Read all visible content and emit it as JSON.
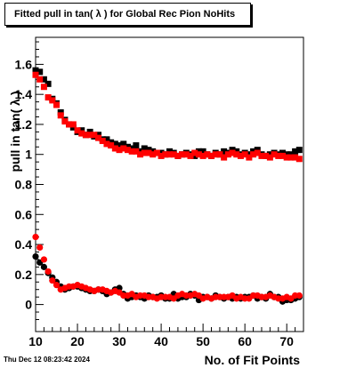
{
  "chart_data": {
    "type": "scatter",
    "title": "Fitted pull in tan( λ ) for Global Rec Pion NoHits",
    "xlabel": "No. of Fit Points",
    "ylabel": "pull in tan( λ )",
    "xlim": [
      10,
      74
    ],
    "ylim": [
      -0.18,
      1.78
    ],
    "x_ticks": [
      10,
      20,
      30,
      40,
      50,
      60,
      70
    ],
    "y_ticks": [
      0,
      0.2,
      0.4,
      0.6,
      0.8,
      1,
      1.2,
      1.4,
      1.6
    ],
    "series": [
      {
        "color": "#000000",
        "marker": "square",
        "x": [
          10,
          11,
          12,
          13,
          14,
          15,
          16,
          17,
          18,
          19,
          20,
          21,
          22,
          23,
          24,
          25,
          26,
          27,
          28,
          29,
          30,
          31,
          32,
          33,
          34,
          35,
          36,
          37,
          38,
          39,
          40,
          41,
          42,
          43,
          44,
          45,
          46,
          47,
          48,
          49,
          50,
          51,
          52,
          53,
          54,
          55,
          56,
          57,
          58,
          59,
          60,
          61,
          62,
          63,
          64,
          65,
          66,
          67,
          68,
          69,
          70,
          71,
          72,
          73
        ],
        "values": [
          1.56,
          1.55,
          1.5,
          1.47,
          1.37,
          1.34,
          1.28,
          1.23,
          1.2,
          1.18,
          1.15,
          1.16,
          1.13,
          1.15,
          1.12,
          1.13,
          1.1,
          1.1,
          1.08,
          1.07,
          1.06,
          1.07,
          1.05,
          1.04,
          1.06,
          1.02,
          1.04,
          1.03,
          1.02,
          1.01,
          1.01,
          1.0,
          1.02,
          1.01,
          0.99,
          1.0,
          1.01,
          1.0,
          0.99,
          1.02,
          1.02,
          1.0,
          0.99,
          1.01,
          1.0,
          1.02,
          1.01,
          1.03,
          1.02,
          1.0,
          1.01,
          1.0,
          1.02,
          1.03,
          1.0,
          0.99,
          1.0,
          1.01,
          1.0,
          1.01,
          1.0,
          1.0,
          1.02,
          1.03
        ]
      },
      {
        "color": "#000000",
        "marker": "circle",
        "x": [
          10,
          11,
          12,
          13,
          14,
          15,
          16,
          17,
          18,
          19,
          20,
          21,
          22,
          23,
          24,
          25,
          26,
          27,
          28,
          29,
          30,
          31,
          32,
          33,
          34,
          35,
          36,
          37,
          38,
          39,
          40,
          41,
          42,
          43,
          44,
          45,
          46,
          47,
          48,
          49,
          50,
          51,
          52,
          53,
          54,
          55,
          56,
          57,
          58,
          59,
          60,
          61,
          62,
          63,
          64,
          65,
          66,
          67,
          68,
          69,
          70,
          71,
          72,
          73
        ],
        "values": [
          0.32,
          0.28,
          0.25,
          0.21,
          0.18,
          0.15,
          0.12,
          0.1,
          0.11,
          0.12,
          0.12,
          0.11,
          0.1,
          0.09,
          0.09,
          0.1,
          0.09,
          0.07,
          0.08,
          0.1,
          0.11,
          0.07,
          0.04,
          0.05,
          0.06,
          0.05,
          0.04,
          0.06,
          0.05,
          0.05,
          0.06,
          0.04,
          0.04,
          0.07,
          0.04,
          0.05,
          0.05,
          0.07,
          0.06,
          0.03,
          0.05,
          0.05,
          0.04,
          0.06,
          0.05,
          0.04,
          0.05,
          0.04,
          0.05,
          0.04,
          0.05,
          0.05,
          0.06,
          0.04,
          0.05,
          0.04,
          0.07,
          0.05,
          0.05,
          0.02,
          0.03,
          0.03,
          0.04,
          0.05
        ]
      },
      {
        "color": "#ff0000",
        "marker": "square",
        "x": [
          10,
          11,
          12,
          13,
          14,
          15,
          16,
          17,
          18,
          19,
          20,
          21,
          22,
          23,
          24,
          25,
          26,
          27,
          28,
          29,
          30,
          31,
          32,
          33,
          34,
          35,
          36,
          37,
          38,
          39,
          40,
          41,
          42,
          43,
          44,
          45,
          46,
          47,
          48,
          49,
          50,
          51,
          52,
          53,
          54,
          55,
          56,
          57,
          58,
          59,
          60,
          61,
          62,
          63,
          64,
          65,
          66,
          67,
          68,
          69,
          70,
          71,
          72,
          73
        ],
        "values": [
          1.53,
          1.5,
          1.45,
          1.38,
          1.36,
          1.33,
          1.26,
          1.22,
          1.2,
          1.2,
          1.16,
          1.14,
          1.13,
          1.13,
          1.13,
          1.11,
          1.09,
          1.07,
          1.06,
          1.04,
          1.03,
          1.04,
          1.03,
          1.02,
          1.02,
          1.0,
          1.01,
          1.01,
          1.0,
          1.01,
          0.99,
          1.0,
          1.0,
          1.0,
          0.99,
          1.0,
          1.0,
          0.99,
          1.01,
          1.0,
          0.99,
          1.0,
          0.99,
          1.0,
          1.0,
          0.98,
          1.0,
          1.01,
          1.0,
          0.99,
          1.0,
          0.98,
          1.0,
          1.01,
          0.99,
          0.99,
          0.98,
          1.0,
          0.99,
          0.99,
          0.98,
          0.98,
          0.98,
          0.97
        ]
      },
      {
        "color": "#ff0000",
        "marker": "circle",
        "x": [
          10,
          11,
          12,
          13,
          14,
          15,
          16,
          17,
          18,
          19,
          20,
          21,
          22,
          23,
          24,
          25,
          26,
          27,
          28,
          29,
          30,
          31,
          32,
          33,
          34,
          35,
          36,
          37,
          38,
          39,
          40,
          41,
          42,
          43,
          44,
          45,
          46,
          47,
          48,
          49,
          50,
          51,
          52,
          53,
          54,
          55,
          56,
          57,
          58,
          59,
          60,
          61,
          62,
          63,
          64,
          65,
          66,
          67,
          68,
          69,
          70,
          71,
          72,
          73
        ],
        "values": [
          0.45,
          0.38,
          0.3,
          0.22,
          0.16,
          0.13,
          0.1,
          0.11,
          0.12,
          0.12,
          0.13,
          0.12,
          0.11,
          0.1,
          0.09,
          0.1,
          0.1,
          0.09,
          0.08,
          0.09,
          0.08,
          0.06,
          0.06,
          0.07,
          0.05,
          0.06,
          0.06,
          0.05,
          0.05,
          0.04,
          0.05,
          0.05,
          0.05,
          0.04,
          0.06,
          0.07,
          0.06,
          0.06,
          0.07,
          0.06,
          0.04,
          0.05,
          0.04,
          0.05,
          0.05,
          0.05,
          0.05,
          0.06,
          0.04,
          0.05,
          0.04,
          0.04,
          0.06,
          0.06,
          0.05,
          0.05,
          0.06,
          0.05,
          0.04,
          0.04,
          0.05,
          0.04,
          0.06,
          0.06
        ]
      }
    ]
  },
  "footer_text": "Thu Dec 12 08:23:42 2024"
}
